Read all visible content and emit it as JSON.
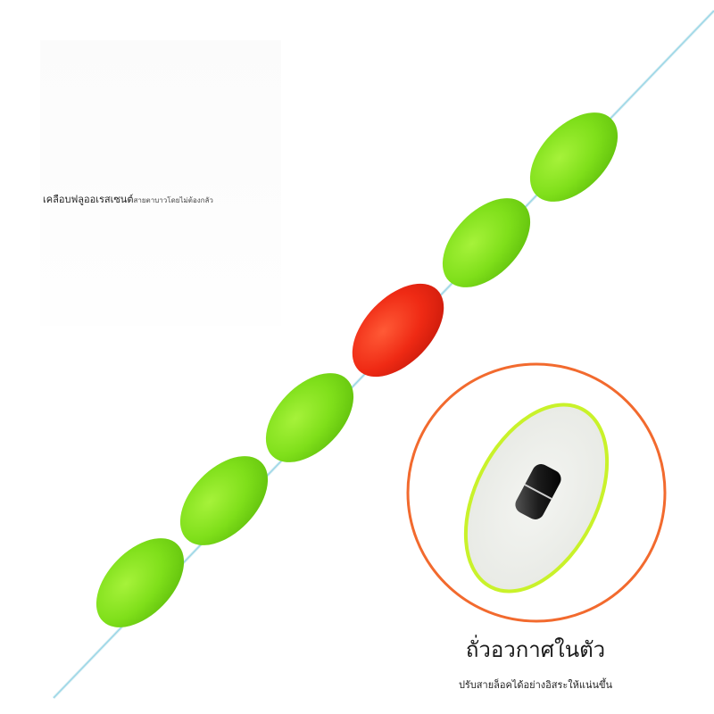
{
  "caption": {
    "primary": "เคลือบฟลูออเรสเซนต์",
    "secondary": "สายตาบาวโดยไม่ต้องกลัว"
  },
  "detail": {
    "title": "ถั่วอวกาศในตัว",
    "subtitle": "ปรับสายล็อคได้อย่างอิสระให้แน่นขึ้น"
  },
  "colors": {
    "float_green": "#7ee01a",
    "float_red": "#ef2a14",
    "circle_ring": "#f26a2e",
    "line": "#9fd8e8"
  }
}
